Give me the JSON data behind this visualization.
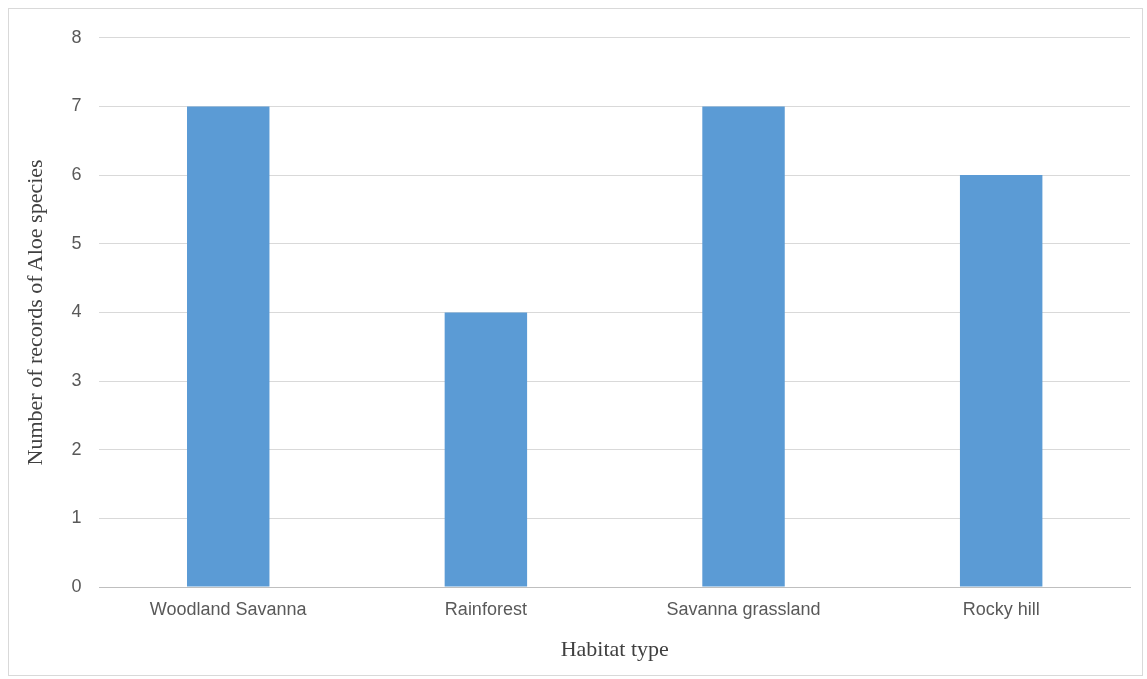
{
  "chart_data": {
    "type": "bar",
    "xlabel": "Habitat type",
    "ylabel": "Number of records of Aloe species",
    "categories": [
      "Woodland Savanna",
      "Rainforest",
      "Savanna grassland",
      "Rocky hill"
    ],
    "values": [
      7,
      4,
      7,
      6
    ],
    "color": "#5b9bd5",
    "ylim": [
      0,
      8
    ],
    "yticks": [
      0,
      1,
      2,
      3,
      4,
      5,
      6,
      7,
      8
    ],
    "grid": "y",
    "legend": false
  }
}
